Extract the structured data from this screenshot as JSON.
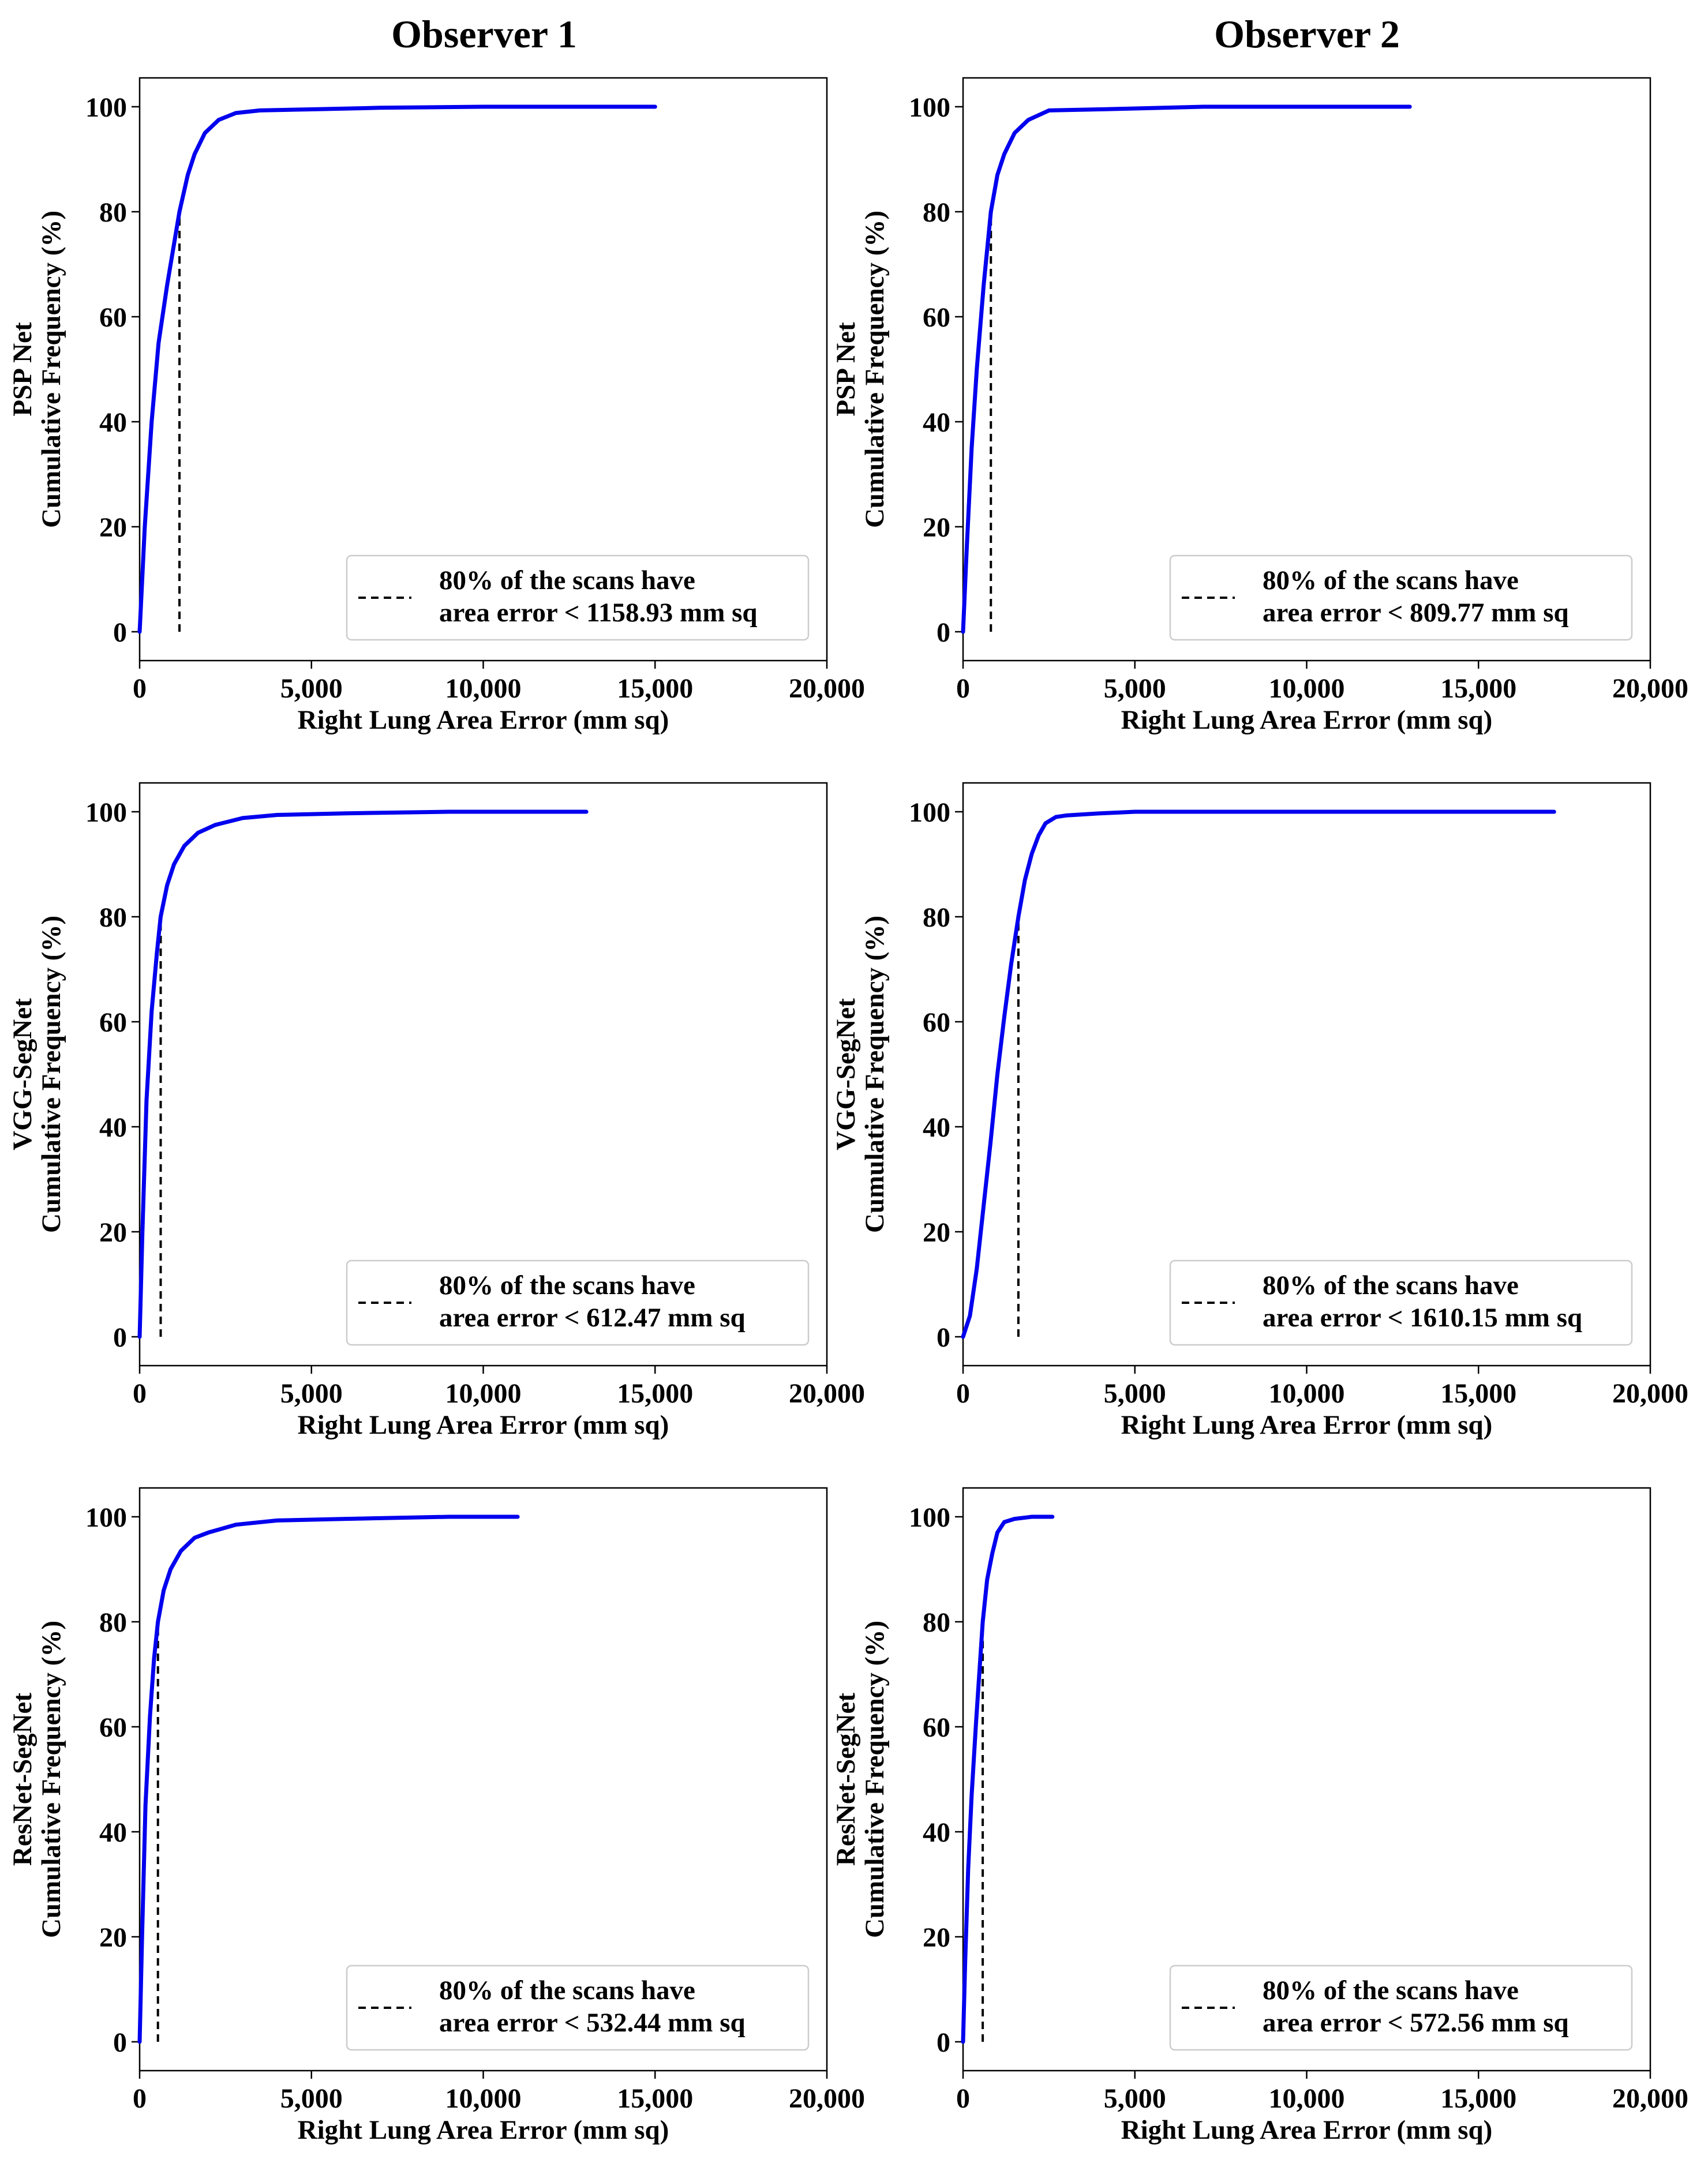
{
  "colors": {
    "curve": "#0000ee",
    "marker": "#000000"
  },
  "column_titles": [
    "Observer 1",
    "Observer 2"
  ],
  "chart_data": [
    {
      "type": "line",
      "observer": "Observer 1",
      "model": "PSP Net",
      "ylabel_model": "PSP Net",
      "ylabel": "Cumulative Frequency (%)",
      "xlabel": "Right Lung Area Error (mm sq)",
      "xlim": [
        0,
        20000
      ],
      "ylim": [
        0,
        100
      ],
      "xticks": [
        0,
        5000,
        10000,
        15000,
        20000
      ],
      "xtick_labels": [
        "0",
        "5,000",
        "10,000",
        "15,000",
        "20,000"
      ],
      "yticks": [
        0,
        20,
        40,
        60,
        80,
        100
      ],
      "ytick_labels": [
        "0",
        "20",
        "40",
        "60",
        "80",
        "100"
      ],
      "series": [
        {
          "name": "cumulative frequency",
          "x": [
            0,
            150,
            350,
            550,
            800,
            1159,
            1400,
            1600,
            1900,
            2300,
            2800,
            3500,
            5000,
            7000,
            10000,
            15000
          ],
          "y": [
            0,
            20,
            40,
            55,
            66,
            80,
            87,
            91,
            95,
            97.5,
            98.8,
            99.3,
            99.5,
            99.8,
            100,
            100
          ]
        }
      ],
      "threshold": {
        "percent": 80,
        "value": 1158.93
      },
      "legend": {
        "line1": "80% of the scans have",
        "line2": "area error < 1158.93 mm sq",
        "position": "lower-right"
      }
    },
    {
      "type": "line",
      "observer": "Observer 2",
      "model": "PSP Net",
      "ylabel_model": "PSP Net",
      "ylabel": "Cumulative Frequency (%)",
      "xlabel": "Right Lung Area Error (mm sq)",
      "xlim": [
        0,
        20000
      ],
      "ylim": [
        0,
        100
      ],
      "xticks": [
        0,
        5000,
        10000,
        15000,
        20000
      ],
      "xtick_labels": [
        "0",
        "5,000",
        "10,000",
        "15,000",
        "20,000"
      ],
      "yticks": [
        0,
        20,
        40,
        60,
        80,
        100
      ],
      "ytick_labels": [
        "0",
        "20",
        "40",
        "60",
        "80",
        "100"
      ],
      "series": [
        {
          "name": "cumulative frequency",
          "x": [
            0,
            100,
            250,
            400,
            600,
            810,
            1000,
            1200,
            1500,
            1900,
            2500,
            4000,
            7000,
            13000
          ],
          "y": [
            0,
            15,
            35,
            50,
            66,
            80,
            87,
            91,
            95,
            97.5,
            99.3,
            99.5,
            100,
            100
          ]
        }
      ],
      "threshold": {
        "percent": 80,
        "value": 809.77
      },
      "legend": {
        "line1": "80% of the scans have",
        "line2": "area error < 809.77 mm sq",
        "position": "lower-right"
      }
    },
    {
      "type": "line",
      "observer": "Observer 1",
      "model": "VGG-SegNet",
      "ylabel_model": "VGG-SegNet",
      "ylabel": "Cumulative Frequency (%)",
      "xlabel": "Right Lung Area Error (mm sq)",
      "xlim": [
        0,
        20000
      ],
      "ylim": [
        0,
        100
      ],
      "xticks": [
        0,
        5000,
        10000,
        15000,
        20000
      ],
      "xtick_labels": [
        "0",
        "5,000",
        "10,000",
        "15,000",
        "20,000"
      ],
      "yticks": [
        0,
        20,
        40,
        60,
        80,
        100
      ],
      "ytick_labels": [
        "0",
        "20",
        "40",
        "60",
        "80",
        "100"
      ],
      "series": [
        {
          "name": "cumulative frequency",
          "x": [
            0,
            80,
            200,
            350,
            500,
            612,
            800,
            1000,
            1300,
            1700,
            2200,
            3000,
            4000,
            6000,
            9000,
            13000
          ],
          "y": [
            0,
            20,
            45,
            62,
            73,
            80,
            86,
            90,
            93.5,
            96,
            97.5,
            98.8,
            99.4,
            99.7,
            100,
            100
          ]
        }
      ],
      "threshold": {
        "percent": 80,
        "value": 612.47
      },
      "legend": {
        "line1": "80% of the scans have",
        "line2": "area error < 612.47 mm sq",
        "position": "lower-right"
      }
    },
    {
      "type": "line",
      "observer": "Observer 2",
      "model": "VGG-SegNet",
      "ylabel_model": "VGG-SegNet",
      "ylabel": "Cumulative Frequency (%)",
      "xlabel": "Right Lung Area Error (mm sq)",
      "xlim": [
        0,
        20000
      ],
      "ylim": [
        0,
        100
      ],
      "xticks": [
        0,
        5000,
        10000,
        15000,
        20000
      ],
      "xtick_labels": [
        "0",
        "5,000",
        "10,000",
        "15,000",
        "20,000"
      ],
      "yticks": [
        0,
        20,
        40,
        60,
        80,
        100
      ],
      "ytick_labels": [
        "0",
        "20",
        "40",
        "60",
        "80",
        "100"
      ],
      "series": [
        {
          "name": "cumulative frequency",
          "x": [
            0,
            200,
            400,
            600,
            800,
            1000,
            1200,
            1400,
            1610,
            1800,
            2000,
            2200,
            2400,
            2700,
            3000,
            4000,
            5000,
            10000,
            17200
          ],
          "y": [
            0,
            4,
            13,
            25,
            37,
            50,
            61,
            71,
            80,
            87,
            92,
            95.5,
            97.8,
            99,
            99.3,
            99.7,
            100,
            100,
            100
          ]
        }
      ],
      "threshold": {
        "percent": 80,
        "value": 1610.15
      },
      "legend": {
        "line1": "80% of the scans have",
        "line2": "area error < 1610.15 mm sq",
        "position": "lower-right"
      }
    },
    {
      "type": "line",
      "observer": "Observer 1",
      "model": "ResNet-SegNet",
      "ylabel_model": "ResNet-SegNet",
      "ylabel": "Cumulative Frequency (%)",
      "xlabel": "Right Lung Area Error (mm sq)",
      "xlim": [
        0,
        20000
      ],
      "ylim": [
        0,
        100
      ],
      "xticks": [
        0,
        5000,
        10000,
        15000,
        20000
      ],
      "xtick_labels": [
        "0",
        "5,000",
        "10,000",
        "15,000",
        "20,000"
      ],
      "yticks": [
        0,
        20,
        40,
        60,
        80,
        100
      ],
      "ytick_labels": [
        "0",
        "20",
        "40",
        "60",
        "80",
        "100"
      ],
      "series": [
        {
          "name": "cumulative frequency",
          "x": [
            0,
            70,
            170,
            300,
            420,
            532,
            700,
            900,
            1200,
            1600,
            2000,
            2800,
            4000,
            6000,
            9000,
            11000
          ],
          "y": [
            0,
            20,
            45,
            62,
            73,
            80,
            86,
            90,
            93.5,
            96,
            97,
            98.5,
            99.3,
            99.6,
            100,
            100
          ]
        }
      ],
      "threshold": {
        "percent": 80,
        "value": 532.44
      },
      "legend": {
        "line1": "80% of the scans have",
        "line2": "area error < 532.44 mm sq",
        "position": "lower-right"
      }
    },
    {
      "type": "line",
      "observer": "Observer 2",
      "model": "ResNet-SegNet",
      "ylabel_model": "ResNet-SegNet",
      "ylabel": "Cumulative Frequency (%)",
      "xlabel": "Right Lung Area Error (mm sq)",
      "xlim": [
        0,
        20000
      ],
      "ylim": [
        0,
        100
      ],
      "xticks": [
        0,
        5000,
        10000,
        15000,
        20000
      ],
      "xtick_labels": [
        "0",
        "5,000",
        "10,000",
        "15,000",
        "20,000"
      ],
      "yticks": [
        0,
        20,
        40,
        60,
        80,
        100
      ],
      "ytick_labels": [
        "0",
        "20",
        "40",
        "60",
        "80",
        "100"
      ],
      "series": [
        {
          "name": "cumulative frequency",
          "x": [
            0,
            60,
            150,
            250,
            380,
            573,
            700,
            850,
            1000,
            1200,
            1500,
            2000,
            2600
          ],
          "y": [
            0,
            15,
            33,
            47,
            61,
            80,
            88,
            93,
            97,
            99,
            99.6,
            100,
            100
          ]
        }
      ],
      "threshold": {
        "percent": 80,
        "value": 572.56
      },
      "legend": {
        "line1": "80% of the scans have",
        "line2": "area error < 572.56 mm sq",
        "position": "lower-right"
      }
    }
  ]
}
